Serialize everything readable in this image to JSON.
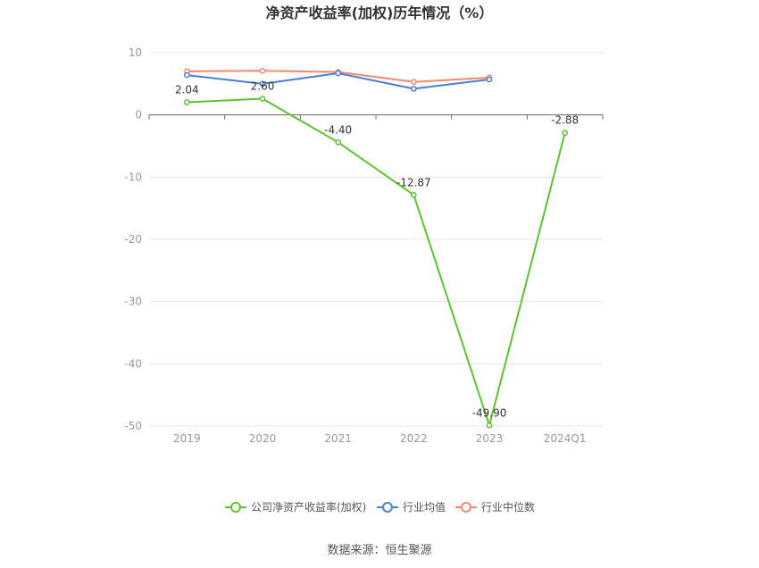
{
  "chart_data": {
    "type": "line",
    "title": "净资产收益率(加权)历年情况（%）",
    "categories": [
      "2019",
      "2020",
      "2021",
      "2022",
      "2023",
      "2024Q1"
    ],
    "ylim": [
      -50,
      10
    ],
    "yticks": [
      10,
      0,
      -10,
      -20,
      -30,
      -40,
      -50
    ],
    "grid": true,
    "legend_position": "bottom",
    "series": [
      {
        "name": "公司净资产收益率(加权)",
        "color": "#5ac42c",
        "values": [
          2.04,
          2.6,
          -4.4,
          -12.87,
          -49.9,
          -2.88
        ],
        "labels": [
          "2.04",
          "2.60",
          "-4.40",
          "-12.87",
          "-49.90",
          "-2.88"
        ]
      },
      {
        "name": "行业均值",
        "color": "#4a7fd6",
        "values": [
          6.4,
          5.0,
          6.7,
          4.2,
          5.7,
          null
        ]
      },
      {
        "name": "行业中位数",
        "color": "#f08a6a",
        "values": [
          7.0,
          7.1,
          6.9,
          5.3,
          6.0,
          null
        ]
      }
    ]
  },
  "source_text": "数据来源：恒生聚源"
}
